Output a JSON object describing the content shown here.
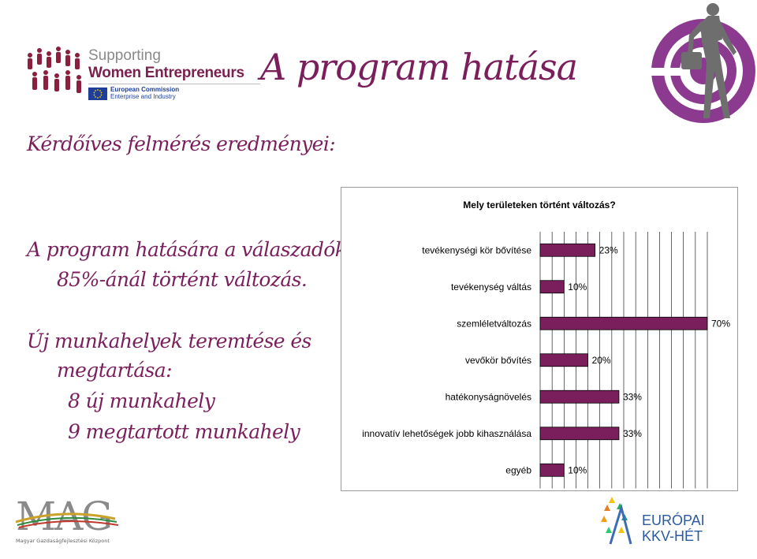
{
  "header": {
    "title": "A program hatása",
    "logo_left": {
      "line1": "Supporting",
      "line2": "Women Entrepreneurs",
      "eu_line1": "European Commission",
      "eu_line2": "Enterprise and Industry"
    }
  },
  "left_text": {
    "subtitle": "Kérdőíves felmérés eredményei:",
    "para1": [
      "A program hatására a válaszadók",
      "85%-ánál történt változás."
    ],
    "para2": [
      "Új munkahelyek teremtése és",
      "megtartása:",
      "8 új munkahely",
      "9 megtartott munkahely"
    ]
  },
  "chart_data": {
    "type": "bar",
    "orientation": "horizontal",
    "title": "Mely területeken történt változás?",
    "categories": [
      "tevékenységi kör bővítése",
      "tevékenység váltás",
      "szemléletváltozás",
      "vevőkör bővítés",
      "hatékonyságnövelés",
      "innovatív lehetőségek jobb kihasználása",
      "egyéb"
    ],
    "values": [
      23,
      10,
      70,
      20,
      33,
      33,
      10
    ],
    "value_labels": [
      "23%",
      "10%",
      "70%",
      "20%",
      "33%",
      "33%",
      "10%"
    ],
    "xlim": [
      0,
      70
    ],
    "grid": true,
    "bar_color": "#7a1f5c"
  },
  "footer": {
    "mag_logo": "MAG",
    "mag_sub": "Magyar Gazdaságfejlesztési Központ",
    "kkv_line1": "EURÓPAI",
    "kkv_line2": "KKV-HÉT"
  },
  "colors": {
    "title": "#7a1f5c",
    "accent": "#8b2c7d",
    "bar": "#7a1f5c"
  }
}
